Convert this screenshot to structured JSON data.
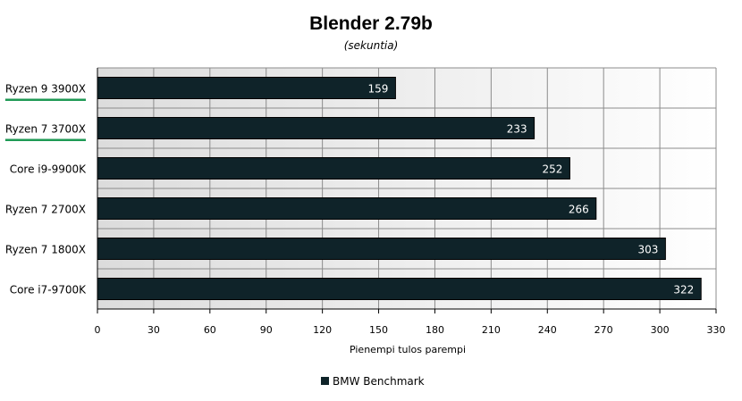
{
  "chart_data": {
    "type": "bar",
    "orientation": "horizontal",
    "title": "Blender 2.79b",
    "subtitle": "(sekuntia)",
    "xlabel": "Pienempi tulos parempi",
    "ylabel": "",
    "categories": [
      "Ryzen 9 3900X",
      "Ryzen 7 3700X",
      "Core i9-9900K",
      "Ryzen 7 2700X",
      "Ryzen 7 1800X",
      "Core i7-9700K"
    ],
    "highlighted_categories": [
      "Ryzen 9 3900X",
      "Ryzen 7 3700X"
    ],
    "series": [
      {
        "name": "BMW Benchmark",
        "values": [
          159,
          233,
          252,
          266,
          303,
          322
        ]
      }
    ],
    "xlim": [
      0,
      330
    ],
    "x_ticks": [
      0,
      30,
      60,
      90,
      120,
      150,
      180,
      210,
      240,
      270,
      300,
      330
    ],
    "grid": true,
    "legend_position": "bottom",
    "colors": {
      "bar": "#0f2329",
      "highlight_underline": "#1f9a55",
      "grid": "#8c8c8c",
      "plot_background_start": "#dcdcdc",
      "plot_background_end": "#ffffff"
    }
  }
}
